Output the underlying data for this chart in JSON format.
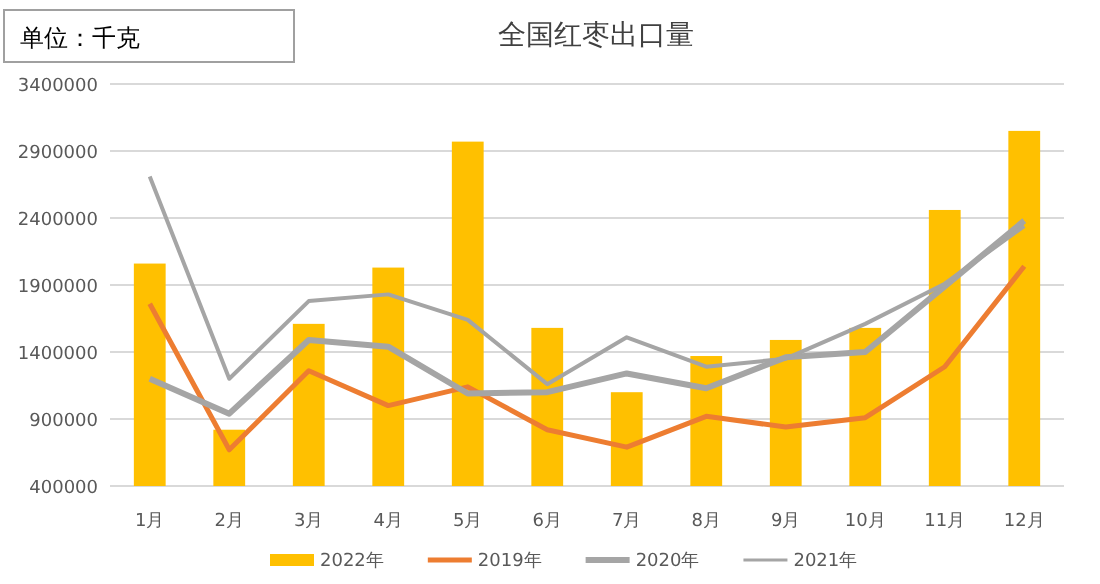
{
  "chart_data": {
    "type": "bar",
    "title": "全国红枣出口量",
    "annotations": [
      "单位：千克"
    ],
    "categories": [
      "1月",
      "2月",
      "3月",
      "4月",
      "5月",
      "6月",
      "7月",
      "8月",
      "9月",
      "10月",
      "11月",
      "12月"
    ],
    "series": [
      {
        "name": "2022年",
        "color": "#ffc000",
        "values": [
          2060000,
          820000,
          1610000,
          2030000,
          2970000,
          1580000,
          1100000,
          1370000,
          1490000,
          1580000,
          2460000,
          3050000
        ]
      },
      {
        "name": "2019年",
        "type": "line",
        "color": "#ed7d31",
        "values": [
          1760000,
          670000,
          1260000,
          1000000,
          1140000,
          820000,
          690000,
          920000,
          840000,
          910000,
          1290000,
          2040000
        ]
      },
      {
        "name": "2020年",
        "type": "line",
        "color": "#a5a5a5",
        "values": [
          1200000,
          940000,
          1490000,
          1440000,
          1090000,
          1100000,
          1240000,
          1130000,
          1360000,
          1400000,
          1890000,
          2380000
        ]
      },
      {
        "name": "2021年",
        "type": "line",
        "color": "#a5a5a5",
        "values": [
          2710000,
          1200000,
          1780000,
          1830000,
          1640000,
          1160000,
          1510000,
          1290000,
          1350000,
          1610000,
          1910000,
          2340000
        ]
      }
    ],
    "ylim": [
      400000,
      3400000
    ],
    "yticks": [
      400000,
      900000,
      1400000,
      1900000,
      2400000,
      2900000,
      3400000
    ],
    "grid": "y",
    "legend": "bottom"
  }
}
